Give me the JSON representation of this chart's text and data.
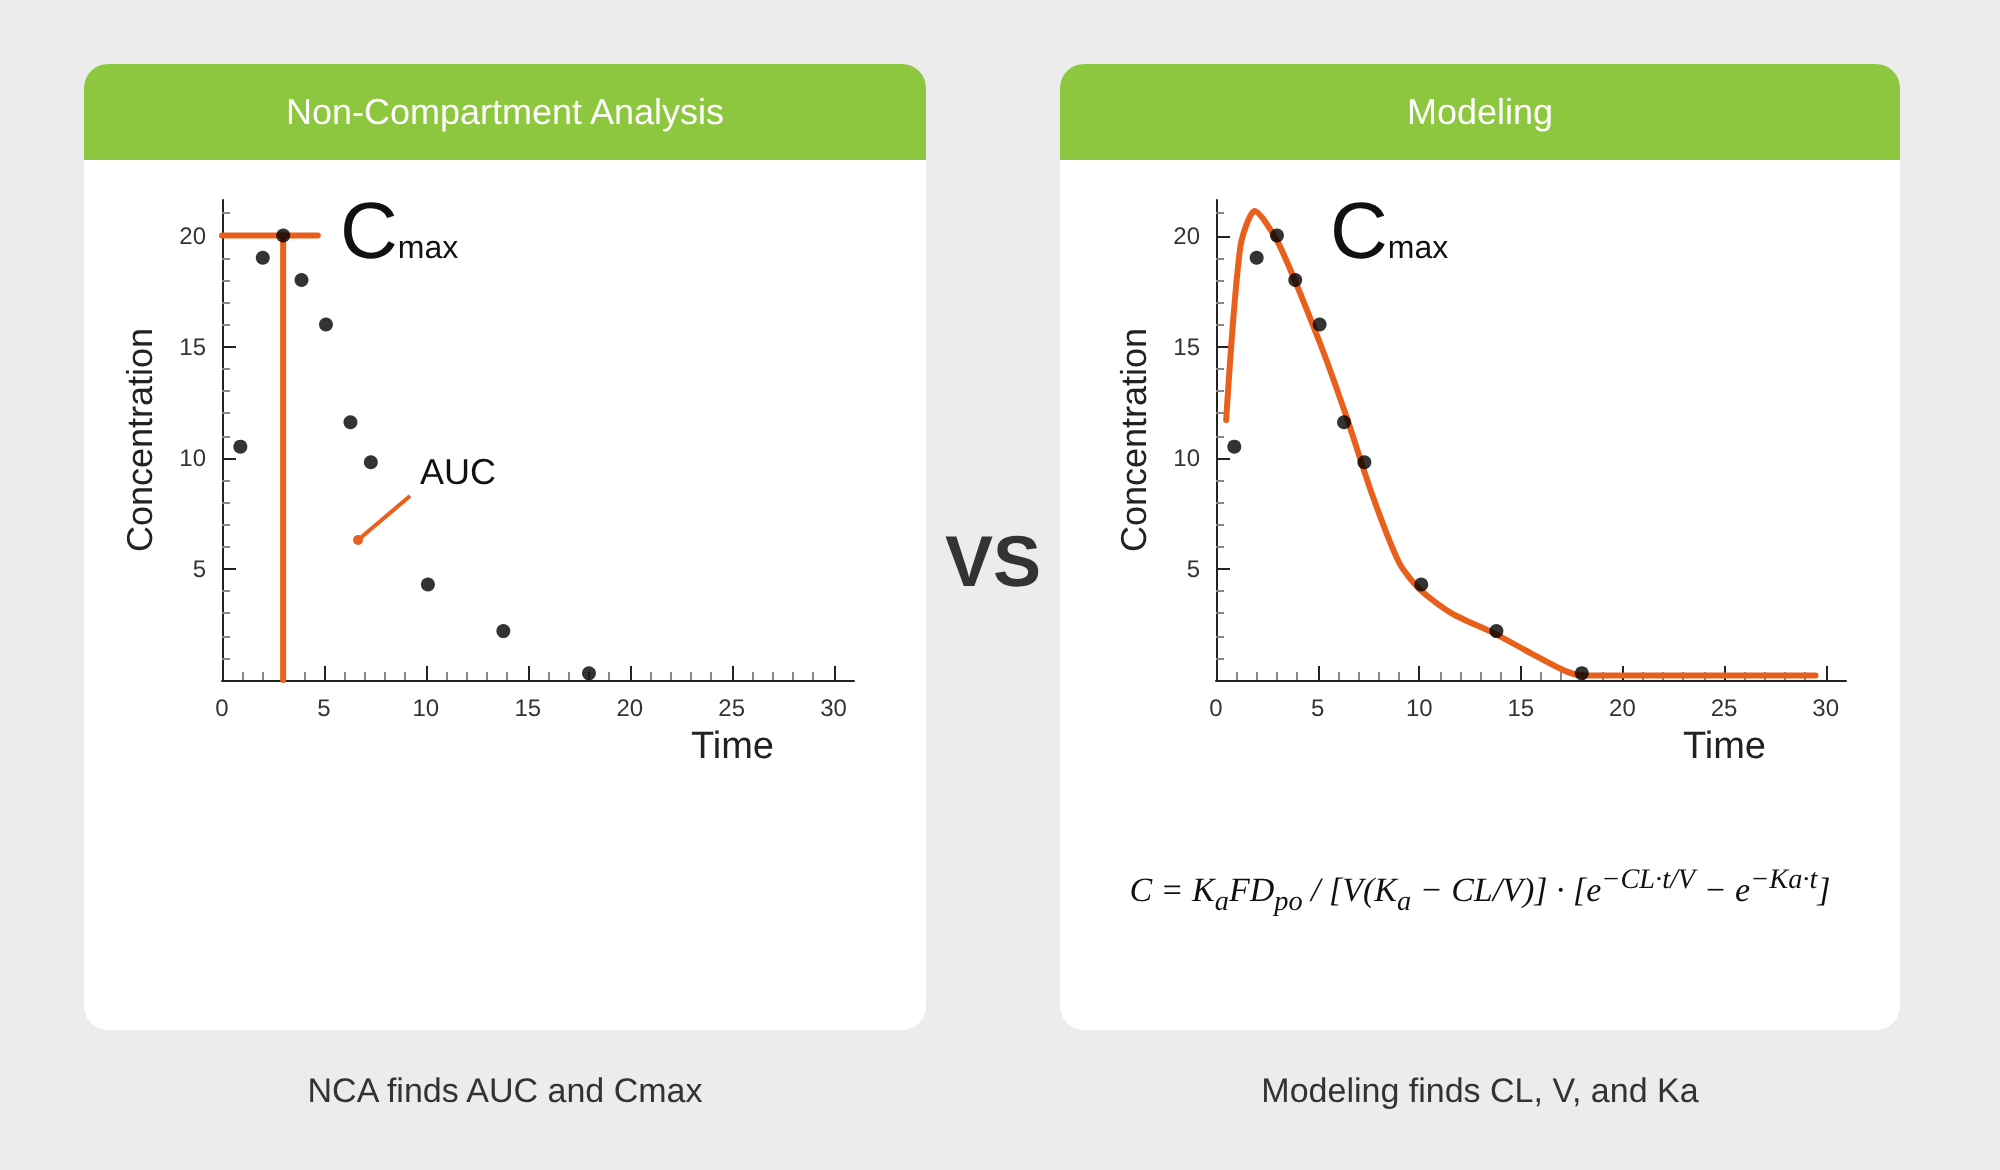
{
  "chart_data": [
    {
      "type": "scatter",
      "title": "Non-Compartment Analysis",
      "xlabel": "Time",
      "ylabel": "Concentration",
      "xlim": [
        0,
        31
      ],
      "ylim": [
        0,
        21.6
      ],
      "xticks": [
        0,
        5,
        10,
        15,
        20,
        25,
        30
      ],
      "yticks": [
        5,
        10,
        15,
        20
      ],
      "series": [
        {
          "type": "scatter",
          "color": "#000000",
          "marker": "circle",
          "x": [
            0.9,
            2,
            3,
            3.9,
            5.1,
            6.3,
            7.3,
            10.1,
            13.8,
            18
          ],
          "values": [
            10.5,
            19,
            20,
            18,
            16,
            11.6,
            9.8,
            4.3,
            2.2,
            0.3
          ]
        },
        {
          "type": "line",
          "color": "#e8601c",
          "marker": "none",
          "x": [
            0,
            4.7
          ],
          "values": [
            20,
            20
          ]
        },
        {
          "type": "line",
          "color": "#e8601c",
          "marker": "none",
          "x": [
            3,
            3
          ],
          "values": [
            0,
            20
          ]
        }
      ],
      "annotations": [
        "C$_{max}$",
        "AUC",
        "VS",
        "NCA finds AUC and Cmax"
      ]
    },
    {
      "type": "scatter",
      "title": "Modeling",
      "xlabel": "Time",
      "ylabel": "Concentration",
      "xlim": [
        0,
        31
      ],
      "ylim": [
        0,
        21.6
      ],
      "xticks": [
        0,
        5,
        10,
        15,
        20,
        25,
        30
      ],
      "yticks": [
        5,
        10,
        15,
        20
      ],
      "series": [
        {
          "type": "scatter",
          "color": "#000000",
          "marker": "circle",
          "x": [
            0.9,
            2,
            3,
            3.9,
            5.1,
            6.3,
            7.3,
            10.1,
            13.8,
            18
          ],
          "values": [
            10.5,
            19,
            20,
            18,
            16,
            11.6,
            9.8,
            4.3,
            2.2,
            0.3
          ]
        },
        {
          "type": "line",
          "color": "#e8601c",
          "marker": "none",
          "x": [
            0.5,
            1.2,
            1.9,
            3.1,
            5.1,
            6.4,
            7.7,
            9,
            10,
            11.6,
            13.7,
            15.5,
            17.2,
            18.1,
            22,
            29.5
          ],
          "values": [
            11.7,
            19.5,
            21.1,
            19.6,
            15.2,
            11.9,
            8.3,
            5.3,
            4.1,
            3,
            2.1,
            1.2,
            0.4,
            0.2,
            0.2,
            0.2
          ]
        }
      ],
      "annotations": [
        "C$_{max}$",
        "C = K$_{a}$FD$_{po}$ / [V(K$_{a}$ − CL/V)] · [e$^{−CL·t/V}$ − e$^{−Ka·t}$]",
        "Modeling finds CL, V, and Ka"
      ]
    }
  ]
}
